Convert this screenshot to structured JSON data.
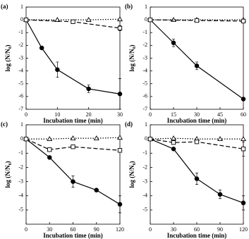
{
  "chart_data": [
    {
      "type": "line",
      "label": "(a)",
      "xlabel": "Incubation time (min)",
      "ylabel": "log (N/N₀)",
      "xlim": [
        0,
        30
      ],
      "xticks": [
        0,
        10,
        20,
        30
      ],
      "ylim": [
        -7,
        1
      ],
      "yticks": [
        1,
        0,
        -1,
        -2,
        -3,
        -4,
        -5,
        -6,
        -7
      ],
      "series": [
        {
          "color": "#000000",
          "marker": "circle",
          "line": "solid",
          "x": [
            0,
            5,
            10,
            20,
            30
          ],
          "values": [
            0,
            -2.2,
            -3.9,
            -5.4,
            -5.8
          ],
          "errors": [
            null,
            null,
            0.6,
            0.3,
            1.2
          ]
        },
        {
          "color": "#000000",
          "marker": "triangle",
          "line": "dotted",
          "x": [
            0,
            10,
            20,
            30
          ],
          "values": [
            0,
            0,
            0,
            0.05
          ],
          "errors": [
            null,
            null,
            null,
            null
          ]
        },
        {
          "color": "#000000",
          "marker": "square",
          "line": "dashed",
          "x": [
            0,
            15,
            30
          ],
          "values": [
            0,
            -0.15,
            -0.65
          ],
          "errors": [
            null,
            null,
            0.2
          ]
        }
      ]
    },
    {
      "type": "line",
      "label": "(b)",
      "xlabel": "Incubation time (min)",
      "ylabel": "log (N/N₀)",
      "xlim": [
        0,
        60
      ],
      "xticks": [
        0,
        15,
        30,
        45,
        60
      ],
      "ylim": [
        -7,
        1
      ],
      "yticks": [
        1,
        0,
        -1,
        -2,
        -3,
        -4,
        -5,
        -6,
        -7
      ],
      "series": [
        {
          "color": "#000000",
          "marker": "circle",
          "line": "solid",
          "x": [
            0,
            15,
            30,
            60
          ],
          "values": [
            0,
            -1.8,
            -3.6,
            -6.2
          ],
          "errors": [
            null,
            0.3,
            0.3,
            null
          ]
        },
        {
          "color": "#000000",
          "marker": "triangle",
          "line": "dotted",
          "x": [
            0,
            15,
            30,
            60
          ],
          "values": [
            0,
            0,
            0,
            0
          ],
          "errors": [
            null,
            null,
            null,
            null
          ]
        },
        {
          "color": "#000000",
          "marker": "square",
          "line": "dashed",
          "x": [
            0,
            30,
            60
          ],
          "values": [
            0,
            -0.05,
            -0.1
          ],
          "errors": [
            null,
            null,
            null
          ]
        }
      ]
    },
    {
      "type": "line",
      "label": "(c)",
      "xlabel": "Incubation time (min)",
      "ylabel": "log (N/N₀)",
      "xlim": [
        0,
        120
      ],
      "xticks": [
        0,
        30,
        60,
        90,
        120
      ],
      "ylim": [
        -6,
        1
      ],
      "yticks": [
        1,
        0,
        -1,
        -2,
        -3,
        -4,
        -5
      ],
      "series": [
        {
          "color": "#000000",
          "marker": "circle",
          "line": "solid",
          "x": [
            0,
            30,
            60,
            90,
            120
          ],
          "values": [
            0,
            -1.3,
            -3.0,
            -3.6,
            -4.6
          ],
          "errors": [
            null,
            null,
            0.4,
            null,
            0.6
          ]
        },
        {
          "color": "#000000",
          "marker": "triangle",
          "line": "dotted",
          "x": [
            0,
            30,
            60,
            90,
            120
          ],
          "values": [
            0,
            0,
            0.05,
            0.05,
            0.1
          ],
          "errors": [
            null,
            null,
            null,
            null,
            null
          ]
        },
        {
          "color": "#000000",
          "marker": "square",
          "line": "dashed",
          "x": [
            0,
            30,
            60,
            120
          ],
          "values": [
            0,
            -0.75,
            -0.55,
            -0.8
          ],
          "errors": [
            null,
            null,
            null,
            null
          ]
        }
      ]
    },
    {
      "type": "line",
      "label": "(d)",
      "xlabel": "Incubation time (min)",
      "ylabel": "log (N/N₀)",
      "xlim": [
        0,
        120
      ],
      "xticks": [
        0,
        30,
        60,
        90,
        120
      ],
      "ylim": [
        -6,
        1
      ],
      "yticks": [
        1,
        0,
        -1,
        -2,
        -3,
        -4,
        -5
      ],
      "series": [
        {
          "color": "#000000",
          "marker": "circle",
          "line": "solid",
          "x": [
            0,
            30,
            60,
            90,
            120
          ],
          "values": [
            0,
            -0.7,
            -2.8,
            -3.9,
            -4.5
          ],
          "errors": [
            null,
            null,
            0.4,
            0.3,
            0.5
          ]
        },
        {
          "color": "#000000",
          "marker": "triangle",
          "line": "dotted",
          "x": [
            0,
            30,
            60,
            90,
            120
          ],
          "values": [
            0,
            0.05,
            0,
            0,
            0
          ],
          "errors": [
            null,
            null,
            null,
            null,
            null
          ]
        },
        {
          "color": "#000000",
          "marker": "square",
          "line": "dashed",
          "x": [
            0,
            30,
            60,
            120
          ],
          "values": [
            0,
            -0.25,
            -0.2,
            -0.7
          ],
          "errors": [
            null,
            null,
            null,
            0.5
          ]
        }
      ]
    }
  ]
}
